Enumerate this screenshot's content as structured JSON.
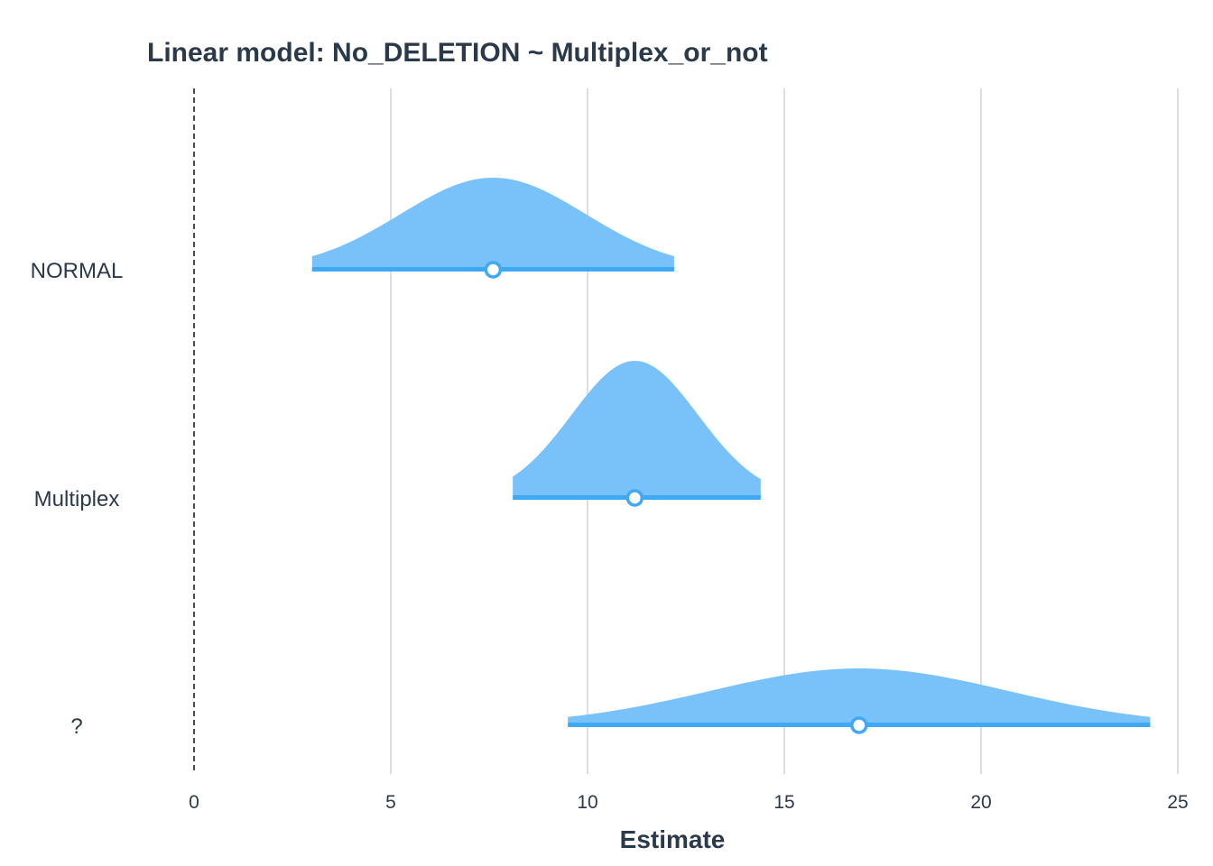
{
  "chart_data": {
    "type": "area",
    "subtype": "posterior-density-halfeye",
    "title": "Linear model: No_DELETION ~ Multiplex_or_not",
    "xlabel": "Estimate",
    "ylabel": "",
    "xlim": [
      0,
      25
    ],
    "x_ticks": [
      0,
      5,
      10,
      15,
      20,
      25
    ],
    "x_tick_labels": [
      "0",
      "5",
      "10",
      "15",
      "20",
      "25"
    ],
    "grid": "vertical",
    "reference_line": {
      "x": 0,
      "style": "dashed"
    },
    "categories": [
      "NORMAL",
      "Multiplex",
      "?"
    ],
    "series": [
      {
        "category": "NORMAL",
        "estimate": 7.6,
        "lower": 3.0,
        "upper": 12.2
      },
      {
        "category": "Multiplex",
        "estimate": 11.2,
        "lower": 8.1,
        "upper": 14.4
      },
      {
        "category": "?",
        "estimate": 16.9,
        "lower": 9.5,
        "upper": 24.3
      }
    ],
    "colors": {
      "fill": "#78c1f9",
      "line": "#3fa9f5",
      "point_fill": "#ffffff",
      "text": "#2b3a4a"
    }
  }
}
